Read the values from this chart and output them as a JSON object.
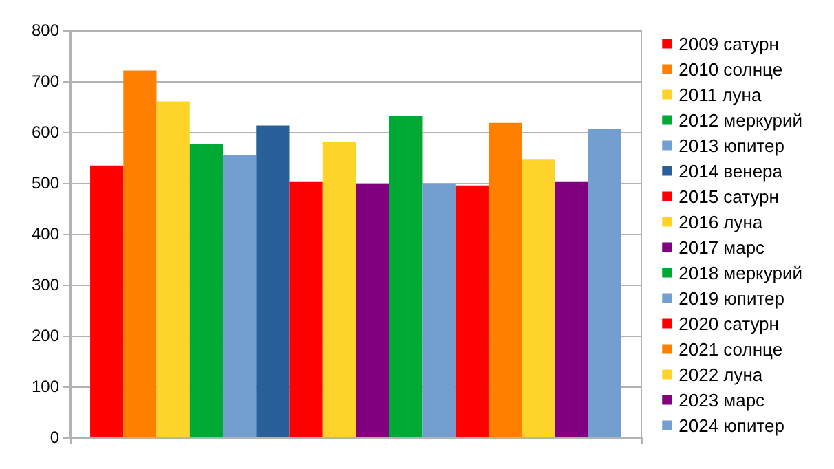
{
  "chart_data": {
    "type": "bar",
    "categories": [
      null
    ],
    "ylim": [
      0,
      800
    ],
    "yticks": [
      0,
      100,
      200,
      300,
      400,
      500,
      600,
      700,
      800
    ],
    "grid": "y",
    "legend": "right",
    "series": [
      {
        "name": "2009 сатурн",
        "color": "#ff0000",
        "values": [
          534
        ]
      },
      {
        "name": "2010 солнце",
        "color": "#ff8000",
        "values": [
          721
        ]
      },
      {
        "name": "2011 луна",
        "color": "#ffd42a",
        "values": [
          660
        ]
      },
      {
        "name": "2012 меркурий",
        "color": "#00a933",
        "values": [
          577
        ]
      },
      {
        "name": "2013 юпитер",
        "color": "#729fcf",
        "values": [
          554
        ]
      },
      {
        "name": "2014 венера",
        "color": "#2a6099",
        "values": [
          613
        ]
      },
      {
        "name": "2015 сатурн",
        "color": "#ff0000",
        "values": [
          503
        ]
      },
      {
        "name": "2016 луна",
        "color": "#ffd42a",
        "values": [
          580
        ]
      },
      {
        "name": "2017 марс",
        "color": "#800080",
        "values": [
          498
        ]
      },
      {
        "name": "2018 меркурий",
        "color": "#00a933",
        "values": [
          631
        ]
      },
      {
        "name": "2019 юпитер",
        "color": "#729fcf",
        "values": [
          499
        ]
      },
      {
        "name": "2020 сатурн",
        "color": "#ff0000",
        "values": [
          495
        ]
      },
      {
        "name": "2021 солнце",
        "color": "#ff8000",
        "values": [
          618
        ]
      },
      {
        "name": "2022 луна",
        "color": "#ffd42a",
        "values": [
          547
        ]
      },
      {
        "name": "2023 марс",
        "color": "#800080",
        "values": [
          503
        ]
      },
      {
        "name": "2024 юпитер",
        "color": "#729fcf",
        "values": [
          606
        ]
      }
    ]
  }
}
